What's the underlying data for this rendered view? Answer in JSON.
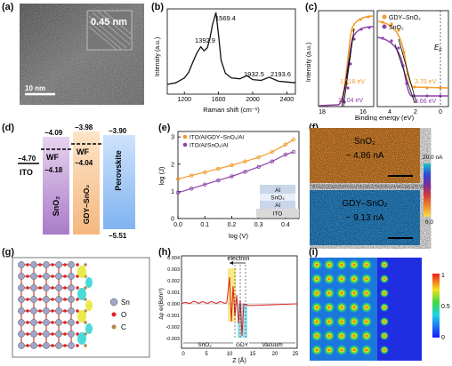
{
  "figure": {
    "panel_labels": [
      "(a)",
      "(b)",
      "(c)",
      "(d)",
      "(e)",
      "(f)",
      "(g)",
      "(h)",
      "(i)"
    ],
    "a": {
      "lattice_label": "0.45 nm",
      "scale_label": "10 nm"
    },
    "b": {
      "xlabel": "Raman shift (cm⁻¹)",
      "ylabel": "Intensity (a.u.)",
      "x_ticks": [
        "1200",
        "1600",
        "2000",
        "2400"
      ],
      "peaks": [
        "1392.9",
        "1569.4",
        "1932.5",
        "2193.6"
      ]
    },
    "c": {
      "xlabel": "Binding energy (eV)",
      "ylabel": "Intensity (a.u.)",
      "legend": [
        "GDY–SnO₂",
        "SnO₂"
      ],
      "left_ticks": [
        "18",
        "16"
      ],
      "right_ticks": [
        "4",
        "2",
        "0"
      ],
      "annotations": [
        "17.18 eV",
        "17.04 eV",
        "3.70 eV",
        "3.66 eV"
      ],
      "ef_label": "E",
      "ef_sub": "F",
      "colors": {
        "gdy": "#f29a2e",
        "sno2": "#8e44ad"
      }
    },
    "d": {
      "ito_level": "−4.70",
      "ito_label": "ITO",
      "sno2_top": "−4.09",
      "sno2_wf": "WF",
      "sno2_wf_val": "−4.18",
      "sno2_name": "SnO₂",
      "gdy_top": "−3.98",
      "gdy_wf": "WF",
      "gdy_wf_val": "−4.04",
      "gdy_name": "GDY–SnO₂",
      "pero_top": "−3.90",
      "pero_bottom": "−5.51",
      "pero_name": "Perovskite"
    },
    "e": {
      "xlabel": "log (V)",
      "ylabel": "log (J)",
      "x_ticks": [
        "0.0",
        "0.1",
        "0.2",
        "0.3",
        "0.4"
      ],
      "y_ticks": [
        "0",
        "1",
        "2",
        "3"
      ],
      "legend": [
        "ITO/Al/GDY–SnO₂/Al",
        "ITO/Al/SnO₂/Al"
      ],
      "stack": [
        "Al",
        "SnO₂",
        "Al",
        "ITO"
      ]
    },
    "f": {
      "top_title": "SnO₂",
      "top_value": "~ 4.86 nA",
      "bottom_title": "GDY–SnO₂",
      "bottom_value": "~ 9.13 nA",
      "cbar_max": "20.0 nA",
      "cbar_min": "0.0"
    },
    "g": {
      "legend": [
        "Sn",
        "O",
        "C"
      ]
    },
    "h": {
      "ylabel": "Δρ e/(Bohr³)",
      "xlabel": "Z (Å)",
      "y_ticks": [
        "0.004",
        "0.003",
        "0.002",
        "0.001",
        "0.000",
        "-0.001",
        "-0.002",
        "-0.003"
      ],
      "x_ticks": [
        "0",
        "5",
        "10",
        "15",
        "20",
        "25"
      ],
      "electron_label": "electron",
      "regions": [
        "SnO₂",
        "GDY",
        "Vacuum"
      ]
    },
    "i": {
      "cbar_ticks": [
        "1",
        "0.5",
        "0"
      ]
    }
  },
  "chart_data": [
    {
      "type": "line",
      "title": "",
      "xlabel": "Raman shift (cm⁻¹)",
      "ylabel": "Intensity (a.u.)",
      "xlim": [
        1000,
        2500
      ],
      "x": [
        1000,
        1100,
        1200,
        1250,
        1300,
        1350,
        1392.9,
        1430,
        1470,
        1500,
        1530,
        1569.4,
        1600,
        1630,
        1680,
        1750,
        1850,
        1932.5,
        2000,
        2100,
        2193.6,
        2300,
        2400,
        2500
      ],
      "series": [
        {
          "values": [
            0.1,
            0.12,
            0.18,
            0.25,
            0.38,
            0.5,
            0.57,
            0.52,
            0.56,
            0.68,
            0.85,
            1.0,
            0.72,
            0.4,
            0.24,
            0.18,
            0.17,
            0.21,
            0.16,
            0.15,
            0.19,
            0.14,
            0.13,
            0.12
          ]
        }
      ]
    },
    {
      "type": "line",
      "title": "",
      "xlabel": "log (V)",
      "ylabel": "log (J)",
      "xlim": [
        0,
        0.45
      ],
      "ylim": [
        0,
        3.2
      ],
      "x": [
        0.0,
        0.05,
        0.1,
        0.15,
        0.2,
        0.25,
        0.3,
        0.35,
        0.4,
        0.43
      ],
      "series": [
        {
          "name": "ITO/Al/GDY–SnO₂/Al",
          "values": [
            1.45,
            1.58,
            1.7,
            1.83,
            1.96,
            2.1,
            2.25,
            2.45,
            2.72,
            2.9
          ]
        },
        {
          "name": "ITO/Al/SnO₂/Al",
          "values": [
            0.95,
            1.1,
            1.25,
            1.4,
            1.55,
            1.72,
            1.9,
            2.1,
            2.35,
            2.45
          ]
        }
      ]
    }
  ]
}
